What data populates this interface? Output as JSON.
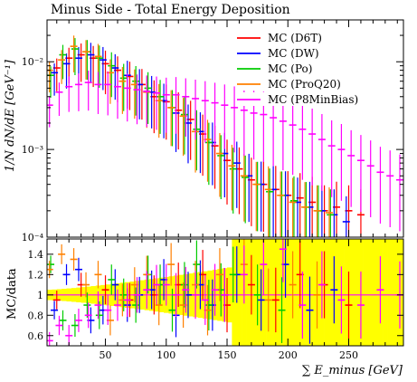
{
  "chart_data": [
    {
      "type": "scatter",
      "title": "Minus Side - Total Energy Deposition",
      "ylabel": "1/N dN/dE [GeV⁻¹]",
      "xlabel": "",
      "ylim": [
        0.0001,
        0.03
      ],
      "y_scale": "log",
      "xlim": [
        2,
        295
      ],
      "y_ticks": [
        {
          "value": 0.01,
          "label": "10⁻²"
        },
        {
          "value": 0.001,
          "label": "10⁻³"
        },
        {
          "value": 0.0001,
          "label": "10⁻⁴"
        }
      ],
      "legend": "top-right",
      "series": [
        {
          "name": "MC (D6T)",
          "color": "#ff0000",
          "x": [
            10,
            20,
            30,
            40,
            50,
            60,
            70,
            80,
            90,
            100,
            110,
            120,
            130,
            140,
            150,
            160,
            170,
            180,
            190,
            200,
            210,
            220,
            230,
            240,
            250,
            260
          ],
          "y": [
            0.0085,
            0.011,
            0.012,
            0.011,
            0.0095,
            0.008,
            0.0068,
            0.0055,
            0.004,
            0.0035,
            0.0028,
            0.0022,
            0.0015,
            0.0011,
            0.00075,
            0.0006,
            0.00045,
            0.0004,
            0.00035,
            0.0003,
            0.00028,
            0.00025,
            0.0002,
            0.00022,
            0.0002,
            0.00018
          ]
        },
        {
          "name": "MC (DW)",
          "color": "#0000ff",
          "x": [
            8,
            18,
            28,
            38,
            48,
            58,
            68,
            78,
            88,
            98,
            108,
            118,
            128,
            138,
            148,
            158,
            168,
            178,
            188,
            198,
            208,
            218,
            228,
            238,
            248
          ],
          "y": [
            0.0075,
            0.0095,
            0.011,
            0.012,
            0.0105,
            0.0085,
            0.007,
            0.0055,
            0.0045,
            0.0036,
            0.0026,
            0.002,
            0.0016,
            0.0012,
            0.0009,
            0.0007,
            0.0005,
            0.0004,
            0.00035,
            0.0003,
            0.00025,
            0.00022,
            0.0002,
            0.00018,
            0.00015
          ]
        },
        {
          "name": "MC (Po)",
          "color": "#00cc00",
          "x": [
            5,
            15,
            25,
            35,
            45,
            55,
            65,
            75,
            85,
            95,
            105,
            115,
            125,
            135,
            145,
            155,
            165,
            175,
            185,
            195,
            205,
            215,
            225,
            235
          ],
          "y": [
            0.007,
            0.012,
            0.014,
            0.013,
            0.011,
            0.009,
            0.0065,
            0.006,
            0.005,
            0.004,
            0.003,
            0.0025,
            0.0017,
            0.0012,
            0.00085,
            0.0006,
            0.00048,
            0.0004,
            0.00033,
            0.0003,
            0.00026,
            0.00022,
            0.0002,
            0.00018
          ]
        },
        {
          "name": "MC (ProQ20)",
          "color": "#ff8000",
          "x": [
            4,
            14,
            24,
            34,
            44,
            54,
            64,
            74,
            84,
            94,
            104,
            114,
            124,
            134,
            144,
            154,
            164,
            174,
            184,
            194,
            204,
            214,
            224,
            234
          ],
          "y": [
            0.008,
            0.0105,
            0.015,
            0.013,
            0.0115,
            0.0075,
            0.006,
            0.0055,
            0.0045,
            0.0036,
            0.003,
            0.0024,
            0.0016,
            0.0013,
            0.0009,
            0.00065,
            0.0005,
            0.0004,
            0.00035,
            0.0003,
            0.00025,
            0.00022,
            0.0002,
            0.00019
          ]
        },
        {
          "name": "MC (P8MinBias)",
          "color": "#ff00ff",
          "x": [
            4,
            12,
            20,
            28,
            36,
            44,
            52,
            60,
            68,
            76,
            84,
            92,
            100,
            108,
            116,
            124,
            132,
            140,
            148,
            156,
            164,
            172,
            180,
            188,
            196,
            204,
            212,
            220,
            228,
            236,
            244,
            252,
            260,
            268,
            276,
            284,
            292
          ],
          "y": [
            0.0032,
            0.0045,
            0.0052,
            0.0055,
            0.0058,
            0.0055,
            0.0055,
            0.0052,
            0.005,
            0.0048,
            0.0046,
            0.0044,
            0.0042,
            0.0042,
            0.004,
            0.0038,
            0.0036,
            0.0034,
            0.0032,
            0.003,
            0.0028,
            0.0026,
            0.0025,
            0.0023,
            0.0021,
            0.0019,
            0.0017,
            0.0015,
            0.0013,
            0.0011,
            0.001,
            0.00085,
            0.00075,
            0.00065,
            0.00055,
            0.0005,
            0.00045
          ]
        }
      ]
    },
    {
      "type": "scatter",
      "ylabel": "MC/data",
      "xlabel": "∑ E_minus [GeV]",
      "xlim": [
        2,
        295
      ],
      "ylim": [
        0.5,
        1.55
      ],
      "x_ticks": [
        50,
        100,
        150,
        200,
        250
      ],
      "y_ticks": [
        0.6,
        0.8,
        1,
        1.2,
        1.4
      ],
      "band_color": "#ffff00",
      "reference_line": 1,
      "series": [
        {
          "name": "MC (D6T)",
          "color": "#ff0000",
          "x": [
            10,
            30,
            50,
            70,
            90,
            110,
            130,
            150,
            170,
            190,
            210,
            230,
            250
          ],
          "y": [
            0.95,
            1.1,
            1.05,
            0.95,
            1.0,
            1.1,
            1.2,
            0.9,
            1.1,
            0.95,
            1.2,
            1.1,
            0.9
          ]
        },
        {
          "name": "MC (DW)",
          "color": "#0000ff",
          "x": [
            8,
            18,
            28,
            38,
            48,
            58,
            68,
            78,
            88,
            98,
            108,
            118,
            128,
            138,
            148,
            158,
            178,
            198,
            218,
            238
          ],
          "y": [
            0.85,
            1.2,
            1.25,
            0.75,
            0.85,
            1.1,
            0.9,
            1.0,
            1.05,
            1.15,
            0.8,
            1.0,
            1.1,
            0.9,
            1.0,
            1.2,
            0.95,
            1.3,
            0.85,
            1.05
          ]
        },
        {
          "name": "MC (Po)",
          "color": "#00cc00",
          "x": [
            5,
            15,
            25,
            35,
            45,
            55,
            65,
            75,
            85,
            95,
            105,
            115,
            125,
            135,
            145,
            155,
            175,
            195
          ],
          "y": [
            1.3,
            0.75,
            0.7,
            0.9,
            0.8,
            1.15,
            1.0,
            0.9,
            1.2,
            1.1,
            0.85,
            1.1,
            1.3,
            0.9,
            1.05,
            1.2,
            1.0,
            0.85
          ]
        },
        {
          "name": "MC (ProQ20)",
          "color": "#ff8000",
          "x": [
            4,
            14,
            24,
            34,
            44,
            54,
            64,
            74,
            84,
            94,
            104,
            114,
            124,
            134,
            144,
            164,
            184,
            204,
            224
          ],
          "y": [
            1.25,
            1.4,
            1.35,
            1.1,
            1.2,
            0.75,
            0.95,
            1.1,
            1.2,
            0.9,
            1.3,
            0.9,
            1.1,
            0.85,
            1.2,
            1.3,
            0.95,
            1.1,
            1.0
          ]
        },
        {
          "name": "MC (P8MinBias)",
          "color": "#ff00ff",
          "x": [
            4,
            12,
            20,
            28,
            36,
            44,
            52,
            60,
            68,
            76,
            84,
            92,
            100,
            108,
            116,
            124,
            132,
            140,
            148,
            164,
            180,
            196,
            212,
            228,
            244,
            260,
            276,
            292
          ],
          "y": [
            0.55,
            0.7,
            0.6,
            0.75,
            0.8,
            0.9,
            0.85,
            0.9,
            0.95,
            1.0,
            1.05,
            1.1,
            1.1,
            1.0,
            1.05,
            1.0,
            0.95,
            1.05,
            1.0,
            1.2,
            1.3,
            1.45,
            0.9,
            1.1,
            0.95,
            0.9,
            1.05,
            1.0
          ]
        }
      ]
    }
  ],
  "labels": {
    "title": "Minus Side - Total Energy Deposition",
    "top_ylabel": "1/N dN/dE [GeV⁻¹]",
    "bottom_ylabel": "MC/data",
    "xlabel": "∑ E_minus [GeV]"
  }
}
